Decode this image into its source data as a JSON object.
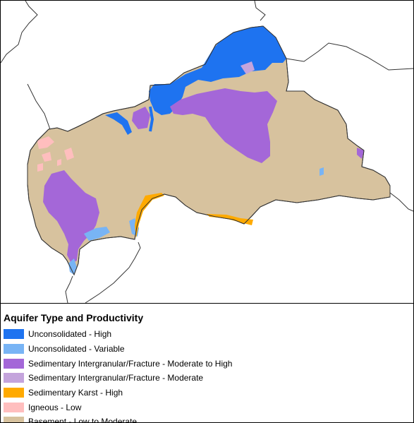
{
  "legend": {
    "title": "Aquifer Type and Productivity",
    "items": [
      {
        "label": "Unconsolidated - High",
        "color": "#1e73f0"
      },
      {
        "label": "Unconsolidated - Variable",
        "color": "#78b4f5"
      },
      {
        "label": "Sedimentary Intergranular/Fracture - Moderate to High",
        "color": "#a467d8"
      },
      {
        "label": "Sedimentary Intergranular/Fracture - Moderate",
        "color": "#c4a4dc"
      },
      {
        "label": "Sedimentary Karst - High",
        "color": "#ffaa00"
      },
      {
        "label": "Igneous - Low",
        "color": "#ffbebe"
      },
      {
        "label": "Basement - Low to Moderate",
        "color": "#d7c29e"
      }
    ]
  },
  "colors": {
    "border": "#333333",
    "background": "#ffffff"
  }
}
